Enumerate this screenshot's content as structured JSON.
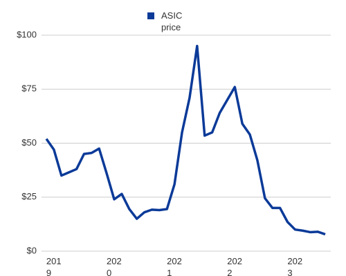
{
  "chart_data": {
    "type": "line",
    "categories": [
      null,
      "2019",
      null,
      null,
      null,
      null,
      null,
      null,
      null,
      "2020",
      null,
      null,
      null,
      null,
      null,
      null,
      null,
      "2021",
      null,
      null,
      null,
      null,
      null,
      null,
      null,
      "2022",
      null,
      null,
      null,
      null,
      null,
      null,
      null,
      "2023",
      null,
      null,
      null,
      null
    ],
    "series": [
      {
        "name": "ASIC price",
        "color": "#0b3a98",
        "values": [
          52,
          47,
          35,
          36.5,
          38,
          45,
          45.5,
          47.5,
          36,
          24,
          26.5,
          19.5,
          15,
          18,
          19.2,
          19,
          19.5,
          31,
          55,
          71,
          95,
          53.5,
          55,
          64,
          70,
          76,
          59,
          54,
          42,
          24.5,
          20,
          20,
          13.5,
          10,
          9.5,
          8.8,
          9,
          7.8
        ]
      }
    ],
    "ylim": [
      0,
      100
    ],
    "yticks": [
      {
        "value": 0,
        "label": "$0"
      },
      {
        "value": 25,
        "label": "$25"
      },
      {
        "value": 50,
        "label": "$50"
      },
      {
        "value": 75,
        "label": "$75"
      },
      {
        "value": 100,
        "label": "$100"
      }
    ],
    "grid": true
  }
}
